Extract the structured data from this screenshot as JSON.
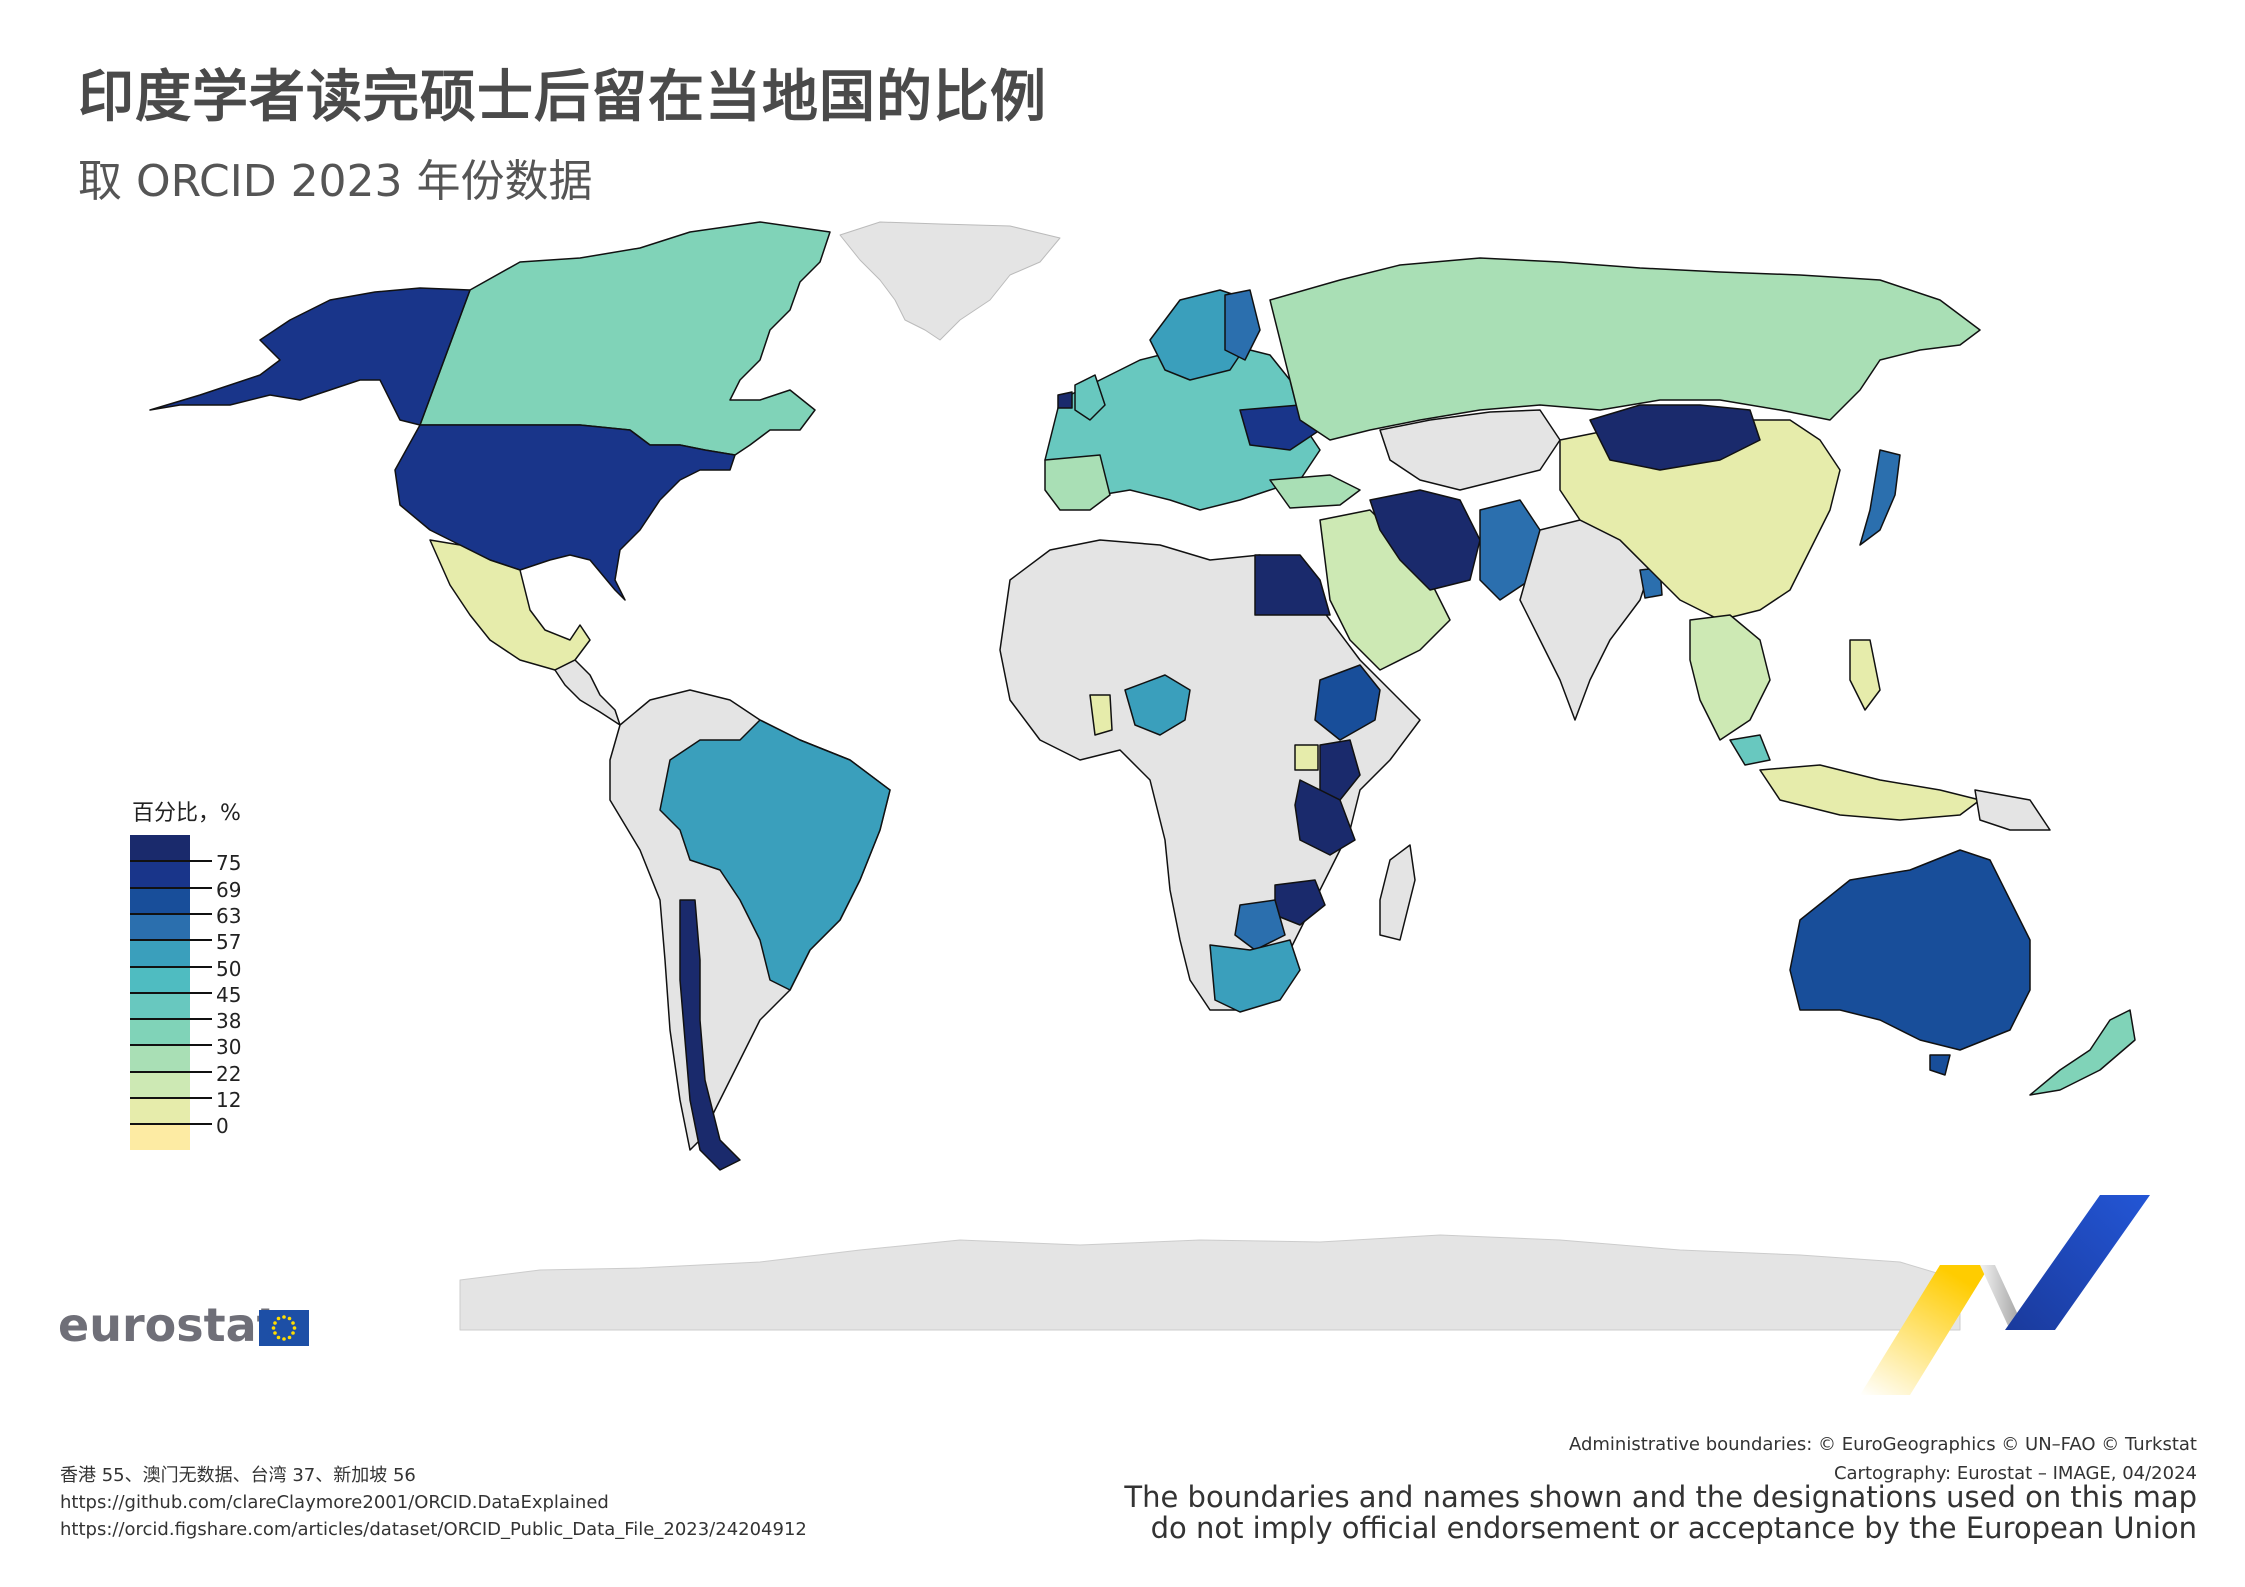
{
  "title": "印度学者读完硕士后留在当地国的比例",
  "subtitle": "取 ORCID 2023 年份数据",
  "legend": {
    "title": "百分比，%",
    "colors": [
      "#1a2a6c",
      "#19358a",
      "#184e9a",
      "#2b6fae",
      "#3a9fbc",
      "#4fbcc1",
      "#68c8bf",
      "#80d3b8",
      "#a9dfb5",
      "#cde9b4",
      "#e6ecab",
      "#fdeba3"
    ],
    "breaks": [
      "75",
      "69",
      "63",
      "57",
      "50",
      "45",
      "38",
      "30",
      "22",
      "12",
      "0"
    ]
  },
  "logo_text": "eurostat",
  "footnotes": {
    "regions": "香港 55、澳门无数据、台湾 37、新加坡 56",
    "url1": "https://github.com/clareClaymore2001/ORCID.DataExplained",
    "url2": "https://orcid.figshare.com/articles/dataset/ORCID_Public_Data_File_2023/24204912"
  },
  "credits": {
    "admin": "Administrative boundaries: © EuroGeographics © UN–FAO © Turkstat",
    "carto": "Cartography: Eurostat – IMAGE, 04/2024",
    "disclaimer1": "The boundaries and names shown and the designations used on this map",
    "disclaimer2": "do not imply official endorsement or acceptance by the European Union"
  },
  "map_colors": {
    "no_data": "#e4e4e4",
    "border": "#111111"
  }
}
